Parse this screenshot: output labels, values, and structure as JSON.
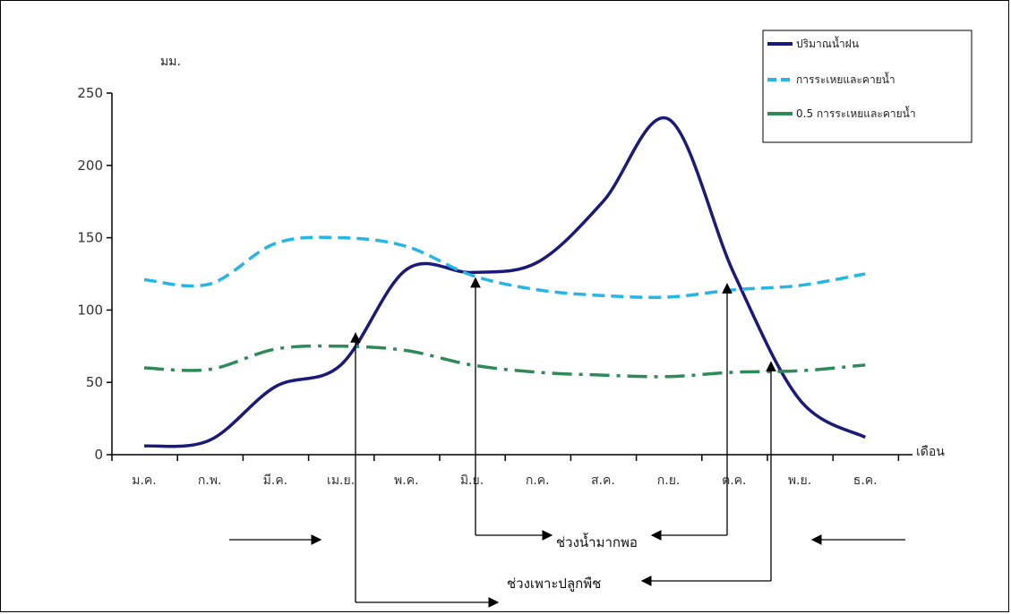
{
  "chart_data": {
    "type": "line",
    "ylabel": "มม.",
    "xlabel": "เดือน",
    "ylim": [
      0,
      250
    ],
    "yticks": [
      0,
      50,
      100,
      150,
      200,
      250
    ],
    "categories": [
      "ม.ค.",
      "ก.พ.",
      "มี.ค.",
      "เม.ย.",
      "พ.ค.",
      "มิ.ย.",
      "ก.ค.",
      "ส.ค.",
      "ก.ย.",
      "ต.ค.",
      "พ.ย.",
      "ธ.ค."
    ],
    "series": [
      {
        "name": "ปริมาณน้ำฝน",
        "color": "#1a1a7a",
        "style": "solid",
        "values": [
          6,
          10,
          47,
          62,
          128,
          126,
          133,
          175,
          232,
          125,
          38,
          12
        ]
      },
      {
        "name": "การระเหยและคายน้ำ",
        "color": "#26b5e5",
        "style": "dashed",
        "values": [
          121,
          118,
          146,
          150,
          144,
          124,
          114,
          110,
          109,
          114,
          117,
          125
        ]
      },
      {
        "name": "0.5 การระเหยและคายน้ำ",
        "color": "#2e8b57",
        "style": "dashdot",
        "values": [
          60,
          59,
          73,
          75,
          72,
          62,
          57,
          55,
          54,
          57,
          58,
          62
        ]
      }
    ],
    "legend_position": "top-right",
    "grid": false,
    "annotations": {
      "sufficient_water": "ช่วงน้ำมากพอ",
      "growing_season": "ช่วงเพาะปลูกพืช"
    }
  }
}
